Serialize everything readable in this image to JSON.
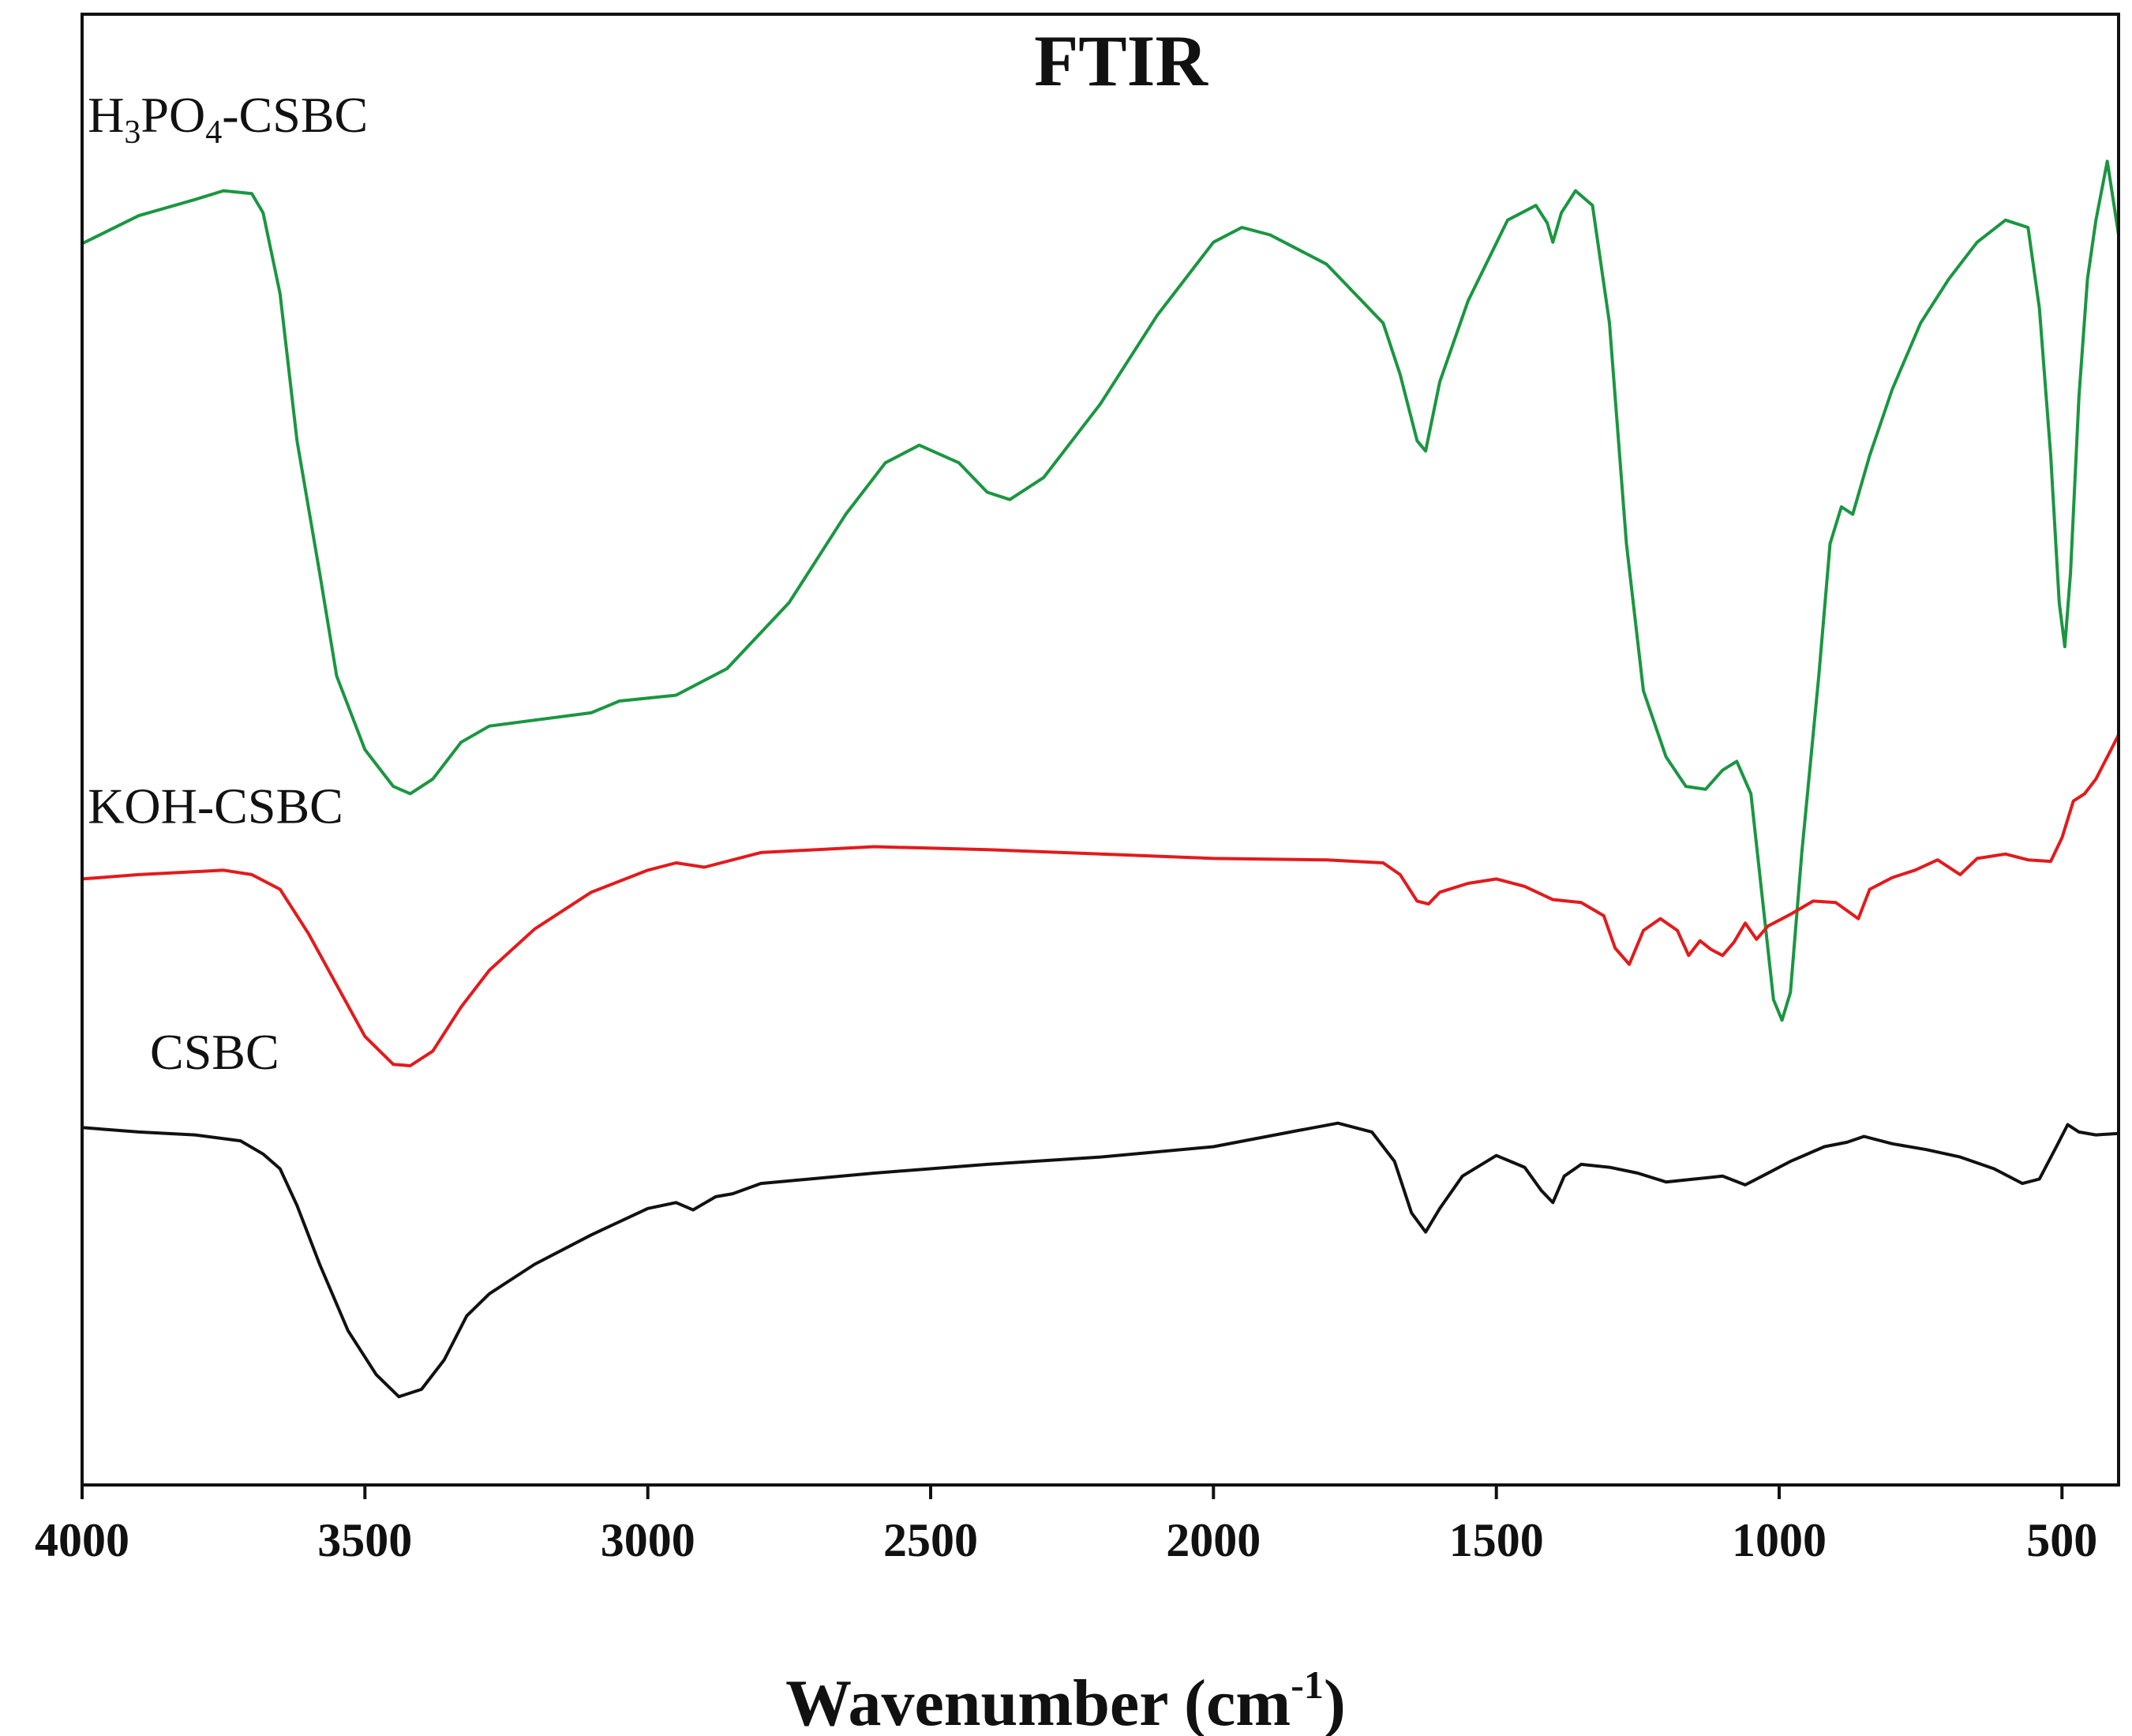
{
  "chart_data": {
    "type": "line",
    "title": "FTIR",
    "xlabel": "Wavenumber",
    "xlabel_unit_base": "cm",
    "xlabel_unit_exp": "-1",
    "ylabel": "",
    "xlim": [
      4000,
      400
    ],
    "ylim": [
      0,
      100
    ],
    "x_ticks": [
      "4000",
      "3500",
      "3000",
      "2500",
      "2000",
      "1500",
      "1000",
      "500"
    ],
    "x_tick_values": [
      4000,
      3500,
      3000,
      2500,
      2000,
      1500,
      1000,
      500
    ],
    "grid": false,
    "series": [
      {
        "name": "H3PO4-CSBC",
        "label_parts": {
          "a": "H",
          "s1": "3",
          "b": "PO",
          "s2": "4",
          "c": "-CSBC"
        },
        "color": "#1a9641",
        "points": [
          [
            4000,
            84.4
          ],
          [
            3900,
            86.3
          ],
          [
            3800,
            87.4
          ],
          [
            3750,
            88.0
          ],
          [
            3700,
            87.8
          ],
          [
            3680,
            86.5
          ],
          [
            3650,
            81.0
          ],
          [
            3620,
            71.0
          ],
          [
            3580,
            62.0
          ],
          [
            3550,
            55.0
          ],
          [
            3500,
            50.0
          ],
          [
            3450,
            47.5
          ],
          [
            3420,
            47.0
          ],
          [
            3380,
            48.0
          ],
          [
            3330,
            50.5
          ],
          [
            3280,
            51.6
          ],
          [
            3200,
            52.0
          ],
          [
            3100,
            52.5
          ],
          [
            3050,
            53.3
          ],
          [
            2950,
            53.7
          ],
          [
            2860,
            55.5
          ],
          [
            2750,
            60.0
          ],
          [
            2650,
            66.0
          ],
          [
            2580,
            69.5
          ],
          [
            2520,
            70.7
          ],
          [
            2450,
            69.5
          ],
          [
            2400,
            67.5
          ],
          [
            2360,
            67.0
          ],
          [
            2300,
            68.5
          ],
          [
            2200,
            73.5
          ],
          [
            2100,
            79.5
          ],
          [
            2000,
            84.5
          ],
          [
            1950,
            85.5
          ],
          [
            1900,
            85.0
          ],
          [
            1800,
            83.0
          ],
          [
            1750,
            81.0
          ],
          [
            1700,
            79.0
          ],
          [
            1670,
            75.5
          ],
          [
            1640,
            71.0
          ],
          [
            1625,
            70.3
          ],
          [
            1600,
            75.0
          ],
          [
            1550,
            80.5
          ],
          [
            1480,
            86.0
          ],
          [
            1430,
            87.0
          ],
          [
            1410,
            85.8
          ],
          [
            1400,
            84.5
          ],
          [
            1385,
            86.5
          ],
          [
            1360,
            88.0
          ],
          [
            1330,
            87.0
          ],
          [
            1300,
            79.0
          ],
          [
            1270,
            64.0
          ],
          [
            1240,
            54.0
          ],
          [
            1200,
            49.5
          ],
          [
            1165,
            47.5
          ],
          [
            1130,
            47.3
          ],
          [
            1100,
            48.6
          ],
          [
            1075,
            49.2
          ],
          [
            1050,
            47.0
          ],
          [
            1030,
            40.0
          ],
          [
            1010,
            33.0
          ],
          [
            995,
            31.6
          ],
          [
            980,
            33.5
          ],
          [
            960,
            43.0
          ],
          [
            930,
            55.0
          ],
          [
            910,
            64.0
          ],
          [
            890,
            66.5
          ],
          [
            870,
            66.0
          ],
          [
            840,
            70.0
          ],
          [
            800,
            74.5
          ],
          [
            750,
            79.0
          ],
          [
            700,
            82.0
          ],
          [
            650,
            84.5
          ],
          [
            600,
            86.0
          ],
          [
            560,
            85.5
          ],
          [
            540,
            80.0
          ],
          [
            520,
            70.0
          ],
          [
            505,
            60.0
          ],
          [
            495,
            57.0
          ],
          [
            485,
            62.0
          ],
          [
            470,
            74.0
          ],
          [
            455,
            82.0
          ],
          [
            440,
            86.0
          ],
          [
            420,
            90.0
          ],
          [
            400,
            85.0
          ]
        ]
      },
      {
        "name": "KOH-CSBC",
        "color": "#e31a1c",
        "points": [
          [
            4000,
            41.2
          ],
          [
            3900,
            41.5
          ],
          [
            3750,
            41.8
          ],
          [
            3700,
            41.5
          ],
          [
            3650,
            40.5
          ],
          [
            3600,
            37.5
          ],
          [
            3550,
            34.0
          ],
          [
            3500,
            30.5
          ],
          [
            3450,
            28.6
          ],
          [
            3420,
            28.5
          ],
          [
            3380,
            29.5
          ],
          [
            3330,
            32.5
          ],
          [
            3280,
            35.0
          ],
          [
            3200,
            37.8
          ],
          [
            3100,
            40.3
          ],
          [
            3000,
            41.8
          ],
          [
            2950,
            42.3
          ],
          [
            2900,
            42.0
          ],
          [
            2800,
            43.0
          ],
          [
            2600,
            43.4
          ],
          [
            2400,
            43.2
          ],
          [
            2200,
            42.9
          ],
          [
            2000,
            42.6
          ],
          [
            1800,
            42.5
          ],
          [
            1700,
            42.3
          ],
          [
            1670,
            41.5
          ],
          [
            1640,
            39.7
          ],
          [
            1620,
            39.5
          ],
          [
            1600,
            40.3
          ],
          [
            1550,
            40.9
          ],
          [
            1500,
            41.2
          ],
          [
            1450,
            40.7
          ],
          [
            1400,
            39.8
          ],
          [
            1350,
            39.6
          ],
          [
            1310,
            38.7
          ],
          [
            1290,
            36.5
          ],
          [
            1265,
            35.4
          ],
          [
            1240,
            37.7
          ],
          [
            1210,
            38.5
          ],
          [
            1180,
            37.7
          ],
          [
            1160,
            36.0
          ],
          [
            1140,
            37.0
          ],
          [
            1120,
            36.4
          ],
          [
            1100,
            36.0
          ],
          [
            1080,
            36.9
          ],
          [
            1060,
            38.2
          ],
          [
            1040,
            37.1
          ],
          [
            1020,
            38.0
          ],
          [
            980,
            38.8
          ],
          [
            940,
            39.7
          ],
          [
            900,
            39.6
          ],
          [
            860,
            38.5
          ],
          [
            840,
            40.5
          ],
          [
            800,
            41.3
          ],
          [
            760,
            41.8
          ],
          [
            720,
            42.5
          ],
          [
            680,
            41.5
          ],
          [
            650,
            42.6
          ],
          [
            600,
            42.9
          ],
          [
            560,
            42.5
          ],
          [
            520,
            42.4
          ],
          [
            500,
            44.0
          ],
          [
            480,
            46.5
          ],
          [
            460,
            47.0
          ],
          [
            440,
            48.0
          ],
          [
            420,
            49.5
          ],
          [
            400,
            51.0
          ]
        ]
      },
      {
        "name": "CSBC",
        "color": "#111111",
        "points": [
          [
            4000,
            24.3
          ],
          [
            3900,
            24.0
          ],
          [
            3800,
            23.8
          ],
          [
            3720,
            23.4
          ],
          [
            3680,
            22.5
          ],
          [
            3650,
            21.5
          ],
          [
            3620,
            19.0
          ],
          [
            3580,
            15.0
          ],
          [
            3530,
            10.5
          ],
          [
            3480,
            7.5
          ],
          [
            3440,
            6.0
          ],
          [
            3400,
            6.5
          ],
          [
            3360,
            8.5
          ],
          [
            3320,
            11.5
          ],
          [
            3280,
            13.0
          ],
          [
            3200,
            15.0
          ],
          [
            3100,
            17.0
          ],
          [
            3000,
            18.8
          ],
          [
            2950,
            19.2
          ],
          [
            2920,
            18.7
          ],
          [
            2880,
            19.6
          ],
          [
            2850,
            19.8
          ],
          [
            2800,
            20.5
          ],
          [
            2600,
            21.2
          ],
          [
            2400,
            21.8
          ],
          [
            2200,
            22.3
          ],
          [
            2000,
            23.0
          ],
          [
            1850,
            24.1
          ],
          [
            1780,
            24.6
          ],
          [
            1720,
            24.0
          ],
          [
            1680,
            22.0
          ],
          [
            1650,
            18.5
          ],
          [
            1625,
            17.2
          ],
          [
            1600,
            18.8
          ],
          [
            1560,
            21.0
          ],
          [
            1500,
            22.4
          ],
          [
            1450,
            21.6
          ],
          [
            1420,
            20.0
          ],
          [
            1400,
            19.2
          ],
          [
            1380,
            21.0
          ],
          [
            1350,
            21.8
          ],
          [
            1300,
            21.6
          ],
          [
            1250,
            21.2
          ],
          [
            1200,
            20.6
          ],
          [
            1150,
            20.8
          ],
          [
            1100,
            21.0
          ],
          [
            1060,
            20.4
          ],
          [
            1030,
            21.0
          ],
          [
            980,
            22.0
          ],
          [
            920,
            23.0
          ],
          [
            880,
            23.3
          ],
          [
            850,
            23.7
          ],
          [
            800,
            23.2
          ],
          [
            740,
            22.8
          ],
          [
            680,
            22.3
          ],
          [
            620,
            21.5
          ],
          [
            570,
            20.5
          ],
          [
            540,
            20.8
          ],
          [
            510,
            23.0
          ],
          [
            490,
            24.5
          ],
          [
            470,
            24.0
          ],
          [
            440,
            23.8
          ],
          [
            400,
            23.9
          ]
        ]
      }
    ],
    "series_labels": [
      {
        "name": "H3PO4-CSBC",
        "x": 3990,
        "y": 92.0
      },
      {
        "name": "KOH-CSBC",
        "x": 3990,
        "y": 45.0
      },
      {
        "name": "CSBC",
        "x": 3880,
        "y": 28.3
      }
    ]
  }
}
